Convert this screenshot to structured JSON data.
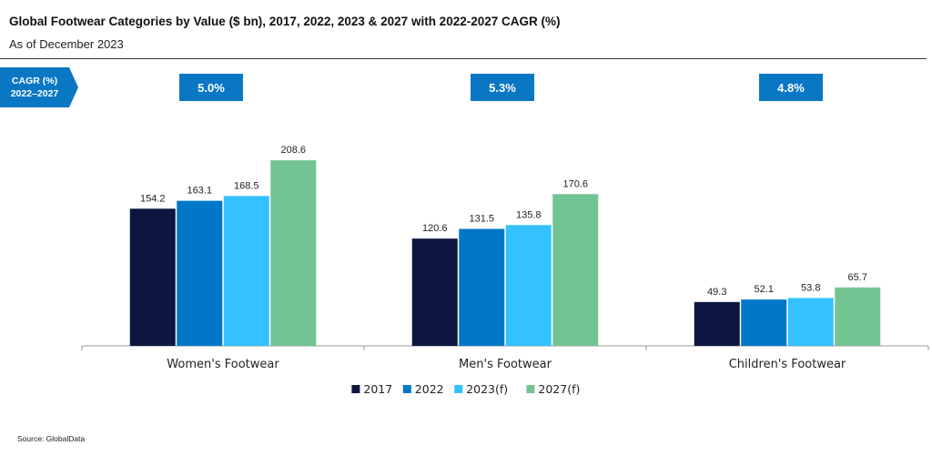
{
  "header": {
    "title": "Global Footwear Categories by Value ($ bn), 2017, 2022, 2023 & 2027 with 2022-2027 CAGR (%)",
    "subtitle": "As of December 2023"
  },
  "cagr_tag": {
    "line1": "CAGR (%)",
    "line2": "2022–2027"
  },
  "cagr_values": [
    "5.0%",
    "5.3%",
    "4.8%"
  ],
  "source": "Source: GlobalData",
  "colors": {
    "s2017": "#0c1640",
    "s2022": "#0077c8",
    "s2023": "#33c1ff",
    "s2027": "#73c493",
    "cagr": "#0a77c4"
  },
  "chart_data": {
    "type": "bar",
    "title": "Global Footwear Categories by Value ($ bn), 2017, 2022, 2023 & 2027 with 2022-2027 CAGR (%)",
    "categories": [
      "Women's Footwear",
      "Men's Footwear",
      "Children's Footwear"
    ],
    "series": [
      {
        "name": "2017",
        "values": [
          154.2,
          120.6,
          49.3
        ]
      },
      {
        "name": "2022",
        "values": [
          163.1,
          131.5,
          52.1
        ]
      },
      {
        "name": "2023(f)",
        "values": [
          168.5,
          135.8,
          53.8
        ]
      },
      {
        "name": "2027(f)",
        "values": [
          208.6,
          170.6,
          65.7
        ]
      }
    ],
    "ylim": [
      0,
      220
    ],
    "grid": false,
    "legend": "bottom-center"
  }
}
